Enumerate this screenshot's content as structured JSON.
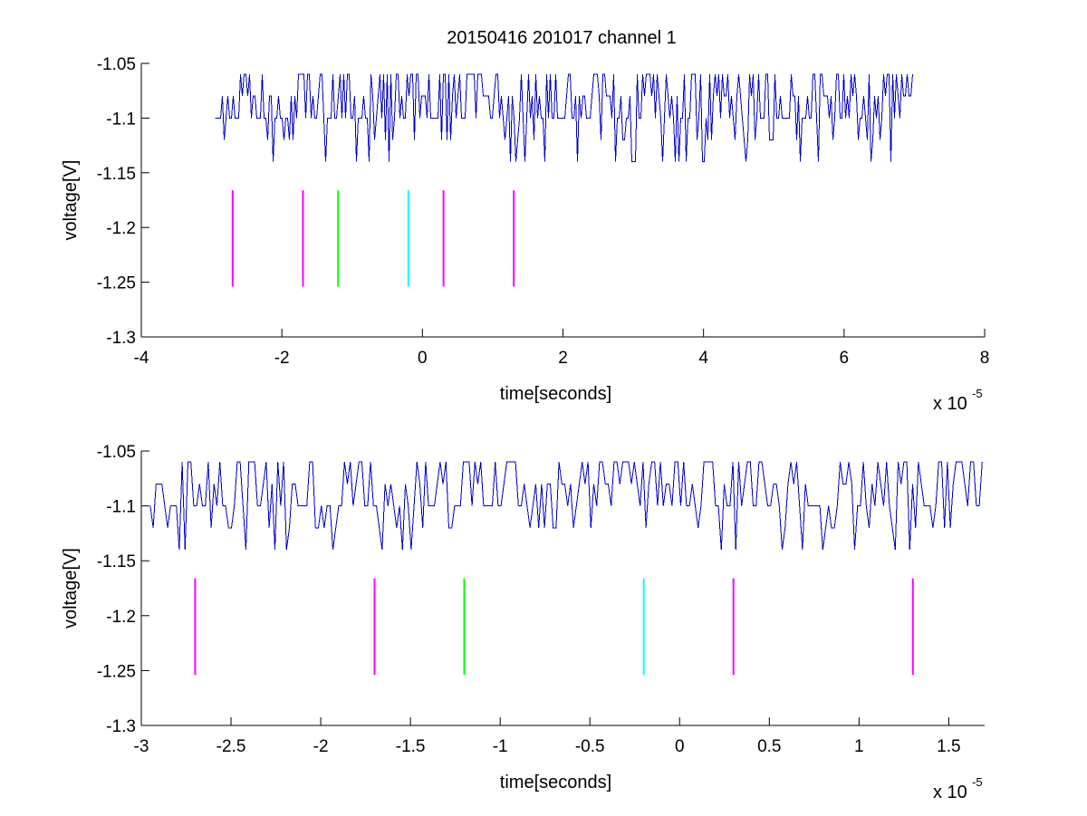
{
  "figure": {
    "title": "20150416 201017 channel 1"
  },
  "chart_data": [
    {
      "type": "line",
      "title": "20150416 201017 channel 1",
      "xlabel": "time[seconds]",
      "ylabel": "voltage[V]",
      "x_multiplier_label": "x 10",
      "x_multiplier_exponent": "-5",
      "xlim": [
        -4e-05,
        8e-05
      ],
      "ylim": [
        -1.3,
        -1.05
      ],
      "xticks": [
        -4e-05,
        -2e-05,
        0,
        2e-05,
        4e-05,
        6e-05,
        8e-05
      ],
      "xtick_labels": [
        "-4",
        "-2",
        "0",
        "2",
        "4",
        "6",
        "8"
      ],
      "yticks": [
        -1.05,
        -1.1,
        -1.15,
        -1.2,
        -1.25,
        -1.3
      ],
      "ytick_labels": [
        "-1.05",
        "-1.1",
        "-1.15",
        "-1.2",
        "-1.25",
        "-1.3"
      ],
      "grid": false,
      "series": [
        {
          "color": "#0000bf",
          "kind": "quantized-noise",
          "x_range": [
            -2.95e-05,
            7e-05
          ],
          "levels": [
            -1.06,
            -1.08,
            -1.1,
            -1.12,
            -1.14
          ],
          "baseline": -1.1,
          "seed": 11
        }
      ],
      "markers": [
        {
          "x": -2.7e-05,
          "y_range": [
            -1.166,
            -1.254
          ],
          "color": "#ff00ff"
        },
        {
          "x": -1.7e-05,
          "y_range": [
            -1.166,
            -1.254
          ],
          "color": "#ff00ff"
        },
        {
          "x": -1.2e-05,
          "y_range": [
            -1.166,
            -1.254
          ],
          "color": "#00ff00"
        },
        {
          "x": -2e-06,
          "y_range": [
            -1.166,
            -1.254
          ],
          "color": "#00ffff"
        },
        {
          "x": 3e-06,
          "y_range": [
            -1.166,
            -1.254
          ],
          "color": "#ff00ff"
        },
        {
          "x": 1.3e-05,
          "y_range": [
            -1.166,
            -1.254
          ],
          "color": "#ff00ff"
        }
      ]
    },
    {
      "type": "line",
      "title": "",
      "xlabel": "time[seconds]",
      "ylabel": "voltage[V]",
      "x_multiplier_label": "x 10",
      "x_multiplier_exponent": "-5",
      "xlim": [
        -3e-05,
        1.7e-05
      ],
      "ylim": [
        -1.3,
        -1.05
      ],
      "xticks": [
        -3e-05,
        -2.5e-05,
        -2e-05,
        -1.5e-05,
        -1e-05,
        -5e-06,
        0,
        5e-06,
        1e-05,
        1.5e-05
      ],
      "xtick_labels": [
        "-3",
        "-2.5",
        "-2",
        "-1.5",
        "-1",
        "-0.5",
        "0",
        "0.5",
        "1",
        "1.5"
      ],
      "yticks": [
        -1.05,
        -1.1,
        -1.15,
        -1.2,
        -1.25,
        -1.3
      ],
      "ytick_labels": [
        "-1.05",
        "-1.1",
        "-1.15",
        "-1.2",
        "-1.25",
        "-1.3"
      ],
      "grid": false,
      "series": [
        {
          "color": "#0000bf",
          "kind": "quantized-noise",
          "x_range": [
            -2.95e-05,
            1.7e-05
          ],
          "levels": [
            -1.06,
            -1.08,
            -1.1,
            -1.12,
            -1.14
          ],
          "baseline": -1.1,
          "seed": 29
        }
      ],
      "markers": [
        {
          "x": -2.7e-05,
          "y_range": [
            -1.166,
            -1.254
          ],
          "color": "#ff00ff"
        },
        {
          "x": -1.7e-05,
          "y_range": [
            -1.166,
            -1.254
          ],
          "color": "#ff00ff"
        },
        {
          "x": -1.2e-05,
          "y_range": [
            -1.166,
            -1.254
          ],
          "color": "#00ff00"
        },
        {
          "x": -2e-06,
          "y_range": [
            -1.166,
            -1.254
          ],
          "color": "#00ffff"
        },
        {
          "x": 3e-06,
          "y_range": [
            -1.166,
            -1.254
          ],
          "color": "#ff00ff"
        },
        {
          "x": 1.3e-05,
          "y_range": [
            -1.166,
            -1.254
          ],
          "color": "#ff00ff"
        }
      ]
    }
  ]
}
